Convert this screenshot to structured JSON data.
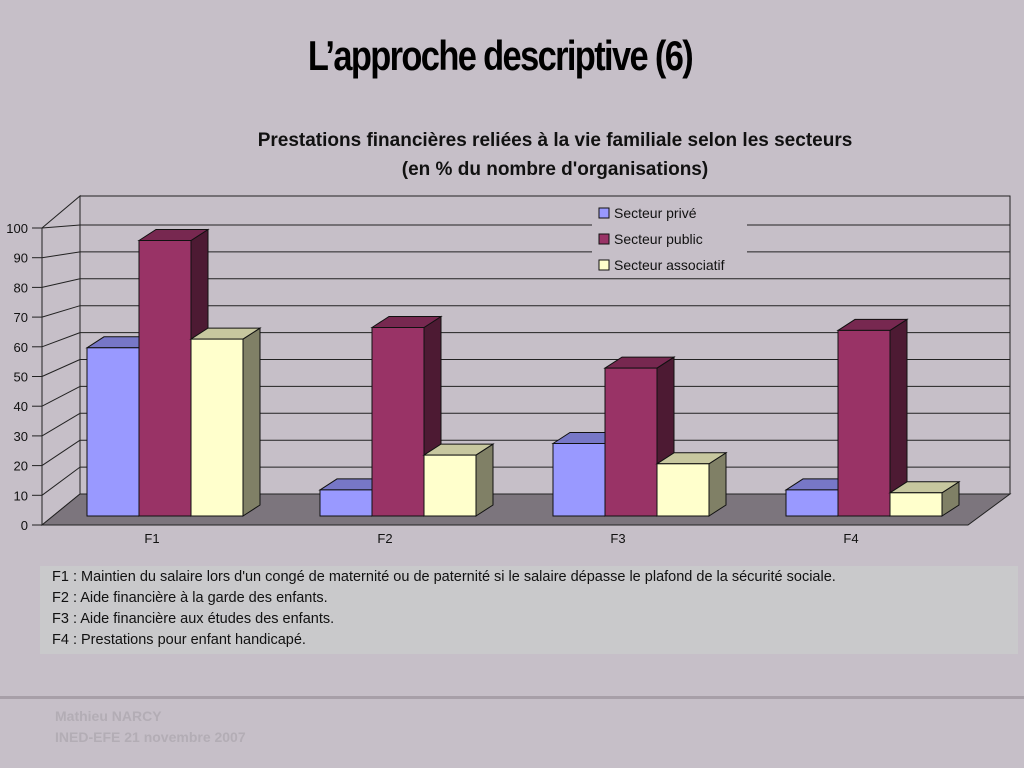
{
  "slide": {
    "title": "L’approche descriptive (6)",
    "notes": [
      "F1 : Maintien du salaire lors d'un congé de maternité ou de paternité si le salaire dépasse le plafond de la sécurité sociale.",
      "F2 : Aide financière à la garde des enfants.",
      "F3 : Aide financière aux études des enfants.",
      "F4 : Prestations pour enfant handicapé."
    ],
    "footer": {
      "author": "Mathieu NARCY",
      "event": "INED-EFE 21 novembre 2007"
    }
  },
  "chart_data": {
    "type": "bar",
    "title_line1": "Prestations financières reliées à la vie familiale selon les secteurs",
    "title_line2": "(en % du nombre d'organisations)",
    "categories": [
      "F1",
      "F2",
      "F3",
      "F4"
    ],
    "series": [
      {
        "name": "Secteur privé",
        "values": [
          58,
          9,
          25,
          9
        ],
        "color": "#9999ff"
      },
      {
        "name": "Secteur public",
        "values": [
          95,
          65,
          51,
          64
        ],
        "color": "#993366"
      },
      {
        "name": "Secteur associatif",
        "values": [
          61,
          21,
          18,
          8
        ],
        "color": "#ffffcc"
      }
    ],
    "ylim": [
      0,
      100
    ],
    "yticks": [
      0,
      10,
      20,
      30,
      40,
      50,
      60,
      70,
      80,
      90,
      100
    ],
    "grid": true,
    "legend_position": "top-right",
    "style": "3d-clustered-column"
  }
}
